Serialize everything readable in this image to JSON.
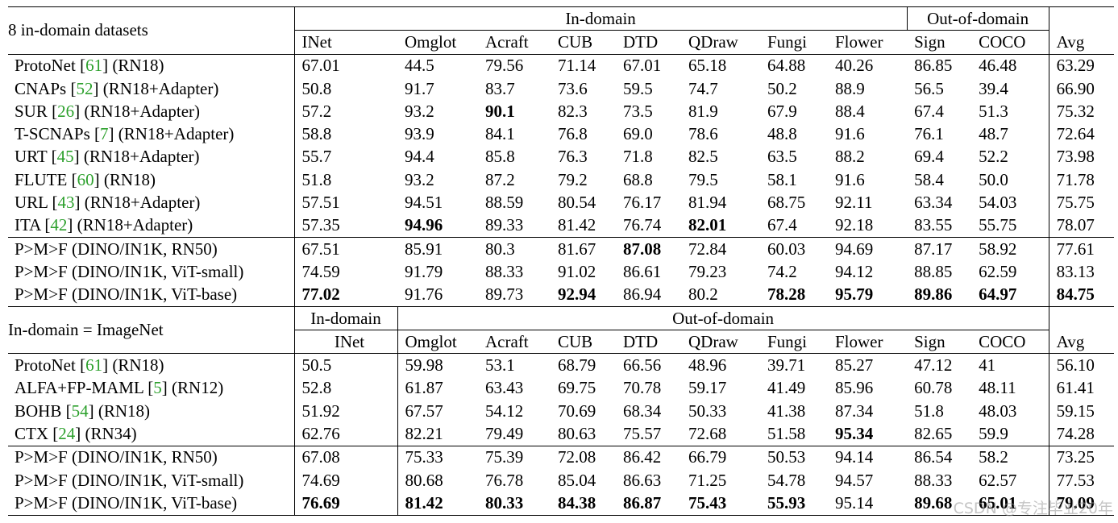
{
  "table1": {
    "row_header_label": "8 in-domain datasets",
    "group_headers": [
      "In-domain",
      "Out-of-domain"
    ],
    "columns": [
      "INet",
      "Omglot",
      "Acraft",
      "CUB",
      "DTD",
      "QDraw",
      "Fungi",
      "Flower",
      "Sign",
      "COCO",
      "Avg"
    ],
    "rows_a": [
      {
        "name": "ProtoNet",
        "ref": "61",
        "suffix": "(RN18)",
        "values": [
          "67.01",
          "44.5",
          "79.56",
          "71.14",
          "67.01",
          "65.18",
          "64.88",
          "40.26",
          "86.85",
          "46.48",
          "63.29"
        ],
        "bold": []
      },
      {
        "name": "CNAPs",
        "ref": "52",
        "suffix": "(RN18+Adapter)",
        "values": [
          "50.8",
          "91.7",
          "83.7",
          "73.6",
          "59.5",
          "74.7",
          "50.2",
          "88.9",
          "56.5",
          "39.4",
          "66.90"
        ],
        "bold": []
      },
      {
        "name": "SUR",
        "ref": "26",
        "suffix": "(RN18+Adapter)",
        "values": [
          "57.2",
          "93.2",
          "90.1",
          "82.3",
          "73.5",
          "81.9",
          "67.9",
          "88.4",
          "67.4",
          "51.3",
          "75.32"
        ],
        "bold": [
          2
        ]
      },
      {
        "name": "T-SCNAPs",
        "ref": "7",
        "suffix": "(RN18+Adapter)",
        "values": [
          "58.8",
          "93.9",
          "84.1",
          "76.8",
          "69.0",
          "78.6",
          "48.8",
          "91.6",
          "76.1",
          "48.7",
          "72.64"
        ],
        "bold": []
      },
      {
        "name": "URT",
        "ref": "45",
        "suffix": "(RN18+Adapter)",
        "values": [
          "55.7",
          "94.4",
          "85.8",
          "76.3",
          "71.8",
          "82.5",
          "63.5",
          "88.2",
          "69.4",
          "52.2",
          "73.98"
        ],
        "bold": []
      },
      {
        "name": "FLUTE",
        "ref": "60",
        "suffix": "(RN18)",
        "values": [
          "51.8",
          "93.2",
          "87.2",
          "79.2",
          "68.8",
          "79.5",
          "58.1",
          "91.6",
          "58.4",
          "50.0",
          "71.78"
        ],
        "bold": []
      },
      {
        "name": "URL",
        "ref": "43",
        "suffix": "(RN18+Adapter)",
        "values": [
          "57.51",
          "94.51",
          "88.59",
          "80.54",
          "76.17",
          "81.94",
          "68.75",
          "92.11",
          "63.34",
          "54.03",
          "75.75"
        ],
        "bold": []
      },
      {
        "name": "ITA",
        "ref": "42",
        "suffix": "(RN18+Adapter)",
        "values": [
          "57.35",
          "94.96",
          "89.33",
          "81.42",
          "76.74",
          "82.01",
          "67.4",
          "92.18",
          "83.55",
          "55.75",
          "78.07"
        ],
        "bold": [
          1,
          5
        ]
      }
    ],
    "rows_b": [
      {
        "name": "P>M>F (DINO/IN1K, RN50)",
        "values": [
          "67.51",
          "85.91",
          "80.3",
          "81.67",
          "87.08",
          "72.84",
          "60.03",
          "94.69",
          "87.17",
          "58.92",
          "77.61"
        ],
        "bold": [
          4
        ]
      },
      {
        "name": "P>M>F (DINO/IN1K, ViT-small)",
        "values": [
          "74.59",
          "91.79",
          "88.33",
          "91.02",
          "86.61",
          "79.23",
          "74.2",
          "94.12",
          "88.85",
          "62.59",
          "83.13"
        ],
        "bold": []
      },
      {
        "name": "P>M>F (DINO/IN1K, ViT-base)",
        "values": [
          "77.02",
          "91.76",
          "89.73",
          "92.94",
          "86.94",
          "80.2",
          "78.28",
          "95.79",
          "89.86",
          "64.97",
          "84.75"
        ],
        "bold": [
          0,
          3,
          6,
          7,
          8,
          9,
          10
        ]
      }
    ]
  },
  "table2": {
    "row_header_label": "In-domain = ImageNet",
    "group_headers": [
      "In-domain",
      "Out-of-domain"
    ],
    "columns": [
      "INet",
      "Omglot",
      "Acraft",
      "CUB",
      "DTD",
      "QDraw",
      "Fungi",
      "Flower",
      "Sign",
      "COCO",
      "Avg"
    ],
    "rows_a": [
      {
        "name": "ProtoNet",
        "ref": "61",
        "suffix": "(RN18)",
        "values": [
          "50.5",
          "59.98",
          "53.1",
          "68.79",
          "66.56",
          "48.96",
          "39.71",
          "85.27",
          "47.12",
          "41",
          "56.10"
        ],
        "bold": []
      },
      {
        "name": "ALFA+FP-MAML",
        "ref": "5",
        "suffix": "(RN12)",
        "values": [
          "52.8",
          "61.87",
          "63.43",
          "69.75",
          "70.78",
          "59.17",
          "41.49",
          "85.96",
          "60.78",
          "48.11",
          "61.41"
        ],
        "bold": []
      },
      {
        "name": "BOHB",
        "ref": "54",
        "suffix": "(RN18)",
        "values": [
          "51.92",
          "67.57",
          "54.12",
          "70.69",
          "68.34",
          "50.33",
          "41.38",
          "87.34",
          "51.8",
          "48.03",
          "59.15"
        ],
        "bold": []
      },
      {
        "name": "CTX",
        "ref": "24",
        "suffix": "(RN34)",
        "values": [
          "62.76",
          "82.21",
          "79.49",
          "80.63",
          "75.57",
          "72.68",
          "51.58",
          "95.34",
          "82.65",
          "59.9",
          "74.28"
        ],
        "bold": [
          7
        ]
      }
    ],
    "rows_b": [
      {
        "name": "P>M>F (DINO/IN1K, RN50)",
        "values": [
          "67.08",
          "75.33",
          "75.39",
          "72.08",
          "86.42",
          "66.79",
          "50.53",
          "94.14",
          "86.54",
          "58.2",
          "73.25"
        ],
        "bold": []
      },
      {
        "name": "P>M>F (DINO/IN1K, ViT-small)",
        "values": [
          "74.69",
          "80.68",
          "76.78",
          "85.04",
          "86.63",
          "71.25",
          "54.78",
          "94.57",
          "88.33",
          "62.57",
          "77.53"
        ],
        "bold": []
      },
      {
        "name": "P>M>F (DINO/IN1K, ViT-base)",
        "values": [
          "76.69",
          "81.42",
          "80.33",
          "84.38",
          "86.87",
          "75.43",
          "55.93",
          "95.14",
          "89.68",
          "65.01",
          "79.09"
        ],
        "bold": [
          0,
          1,
          2,
          3,
          4,
          5,
          6,
          8,
          9,
          10
        ]
      }
    ]
  },
  "watermark": "CSDN @专注毕业20年"
}
